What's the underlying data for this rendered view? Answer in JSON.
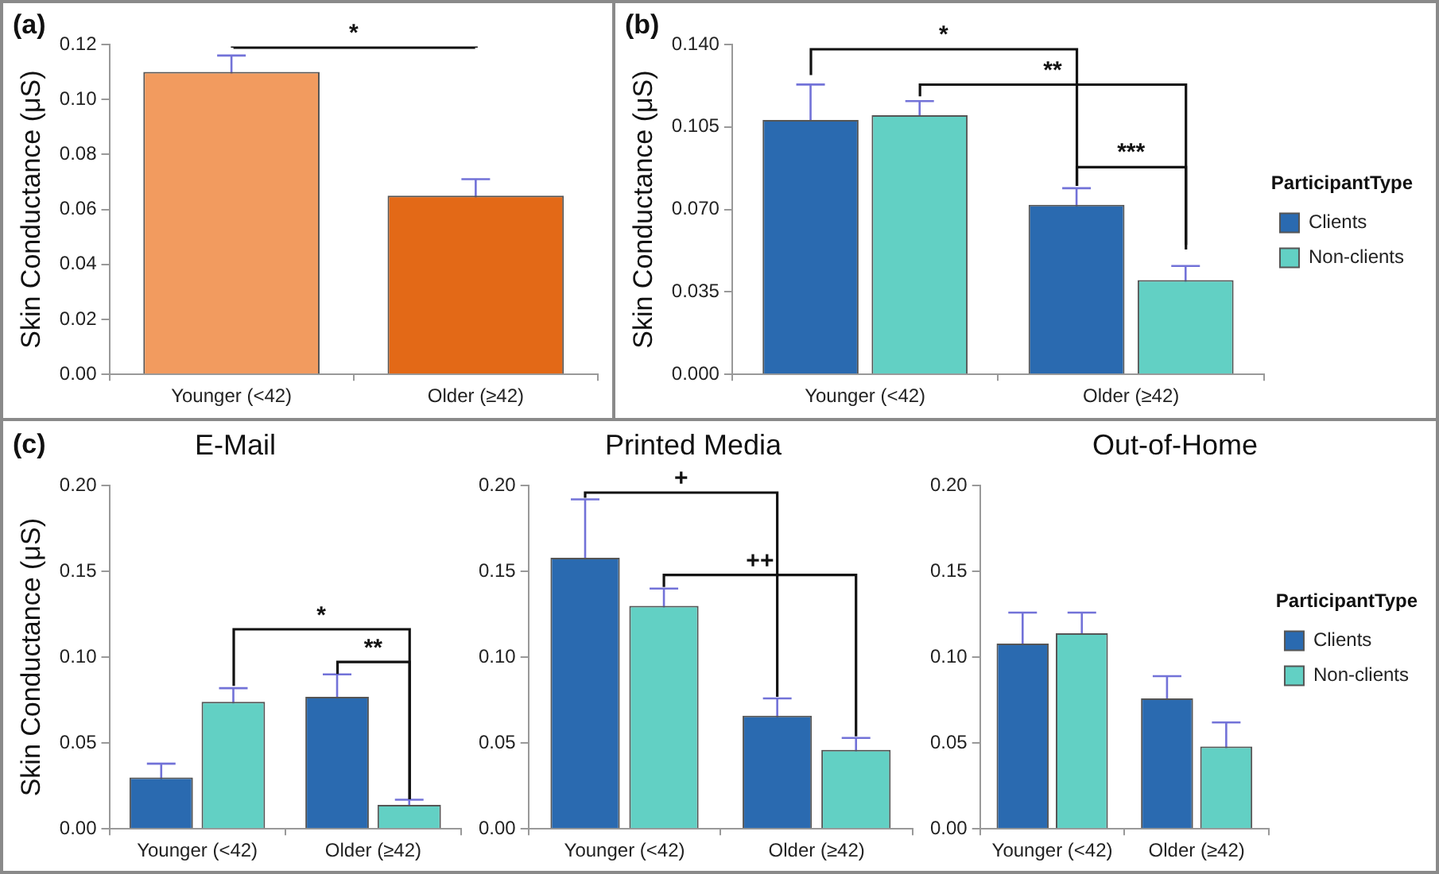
{
  "chart_data": [
    {
      "type": "bar",
      "ylabel": "Skin Conductance (μS)",
      "categories": [
        "Younger (<42)",
        "Older (≥42)"
      ],
      "values": [
        0.11,
        0.065
      ],
      "errors": [
        0.006,
        0.006
      ],
      "colors": [
        "#f29b5f",
        "#e36917"
      ],
      "ylim": [
        0,
        0.12
      ],
      "yticks": [
        {
          "value": 0,
          "label": "0.00"
        },
        {
          "value": 0.02,
          "label": "0.02"
        },
        {
          "value": 0.04,
          "label": "0.04"
        },
        {
          "value": 0.06,
          "label": "0.06"
        },
        {
          "value": 0.08,
          "label": "0.08"
        },
        {
          "value": 0.1,
          "label": "0.10"
        },
        {
          "value": 0.12,
          "label": "0.12"
        }
      ],
      "grid": false,
      "legend": false,
      "annotations": [
        "(a)",
        "*"
      ]
    },
    {
      "type": "bar",
      "ylabel": "Skin Conductance (μS)",
      "legend_title": "ParticipantType",
      "categories": [
        "Younger (<42)",
        "Older (≥42)"
      ],
      "series": [
        {
          "name": "Clients",
          "color": "#2a6ab0",
          "values": [
            0.108,
            0.072
          ],
          "errors": [
            0.015,
            0.007
          ]
        },
        {
          "name": "Non-clients",
          "color": "#62d0c4",
          "values": [
            0.11,
            0.04
          ],
          "errors": [
            0.006,
            0.006
          ]
        }
      ],
      "ylim": [
        0,
        0.14
      ],
      "yticks": [
        {
          "value": 0,
          "label": "0.000"
        },
        {
          "value": 0.035,
          "label": "0.035"
        },
        {
          "value": 0.07,
          "label": "0.070"
        },
        {
          "value": 0.105,
          "label": "0.105"
        },
        {
          "value": 0.14,
          "label": "0.140"
        }
      ],
      "grid": false,
      "legend": "right",
      "annotations": [
        "(b)",
        "*",
        "**",
        "***"
      ]
    },
    {
      "type": "bar",
      "title": "E-Mail",
      "ylabel": "Skin Conductance (μS)",
      "categories": [
        "Younger (<42)",
        "Older (≥42)"
      ],
      "series": [
        {
          "color": "#2a6ab0",
          "values": [
            0.03,
            0.077
          ],
          "errors": [
            0.008,
            0.013
          ]
        },
        {
          "color": "#62d0c4",
          "values": [
            0.074,
            0.014
          ],
          "errors": [
            0.008,
            0.003
          ]
        }
      ],
      "ylim": [
        0,
        0.2
      ],
      "yticks": [
        {
          "value": 0,
          "label": "0.00"
        },
        {
          "value": 0.05,
          "label": "0.05"
        },
        {
          "value": 0.1,
          "label": "0.10"
        },
        {
          "value": 0.15,
          "label": "0.15"
        },
        {
          "value": 0.2,
          "label": "0.20"
        }
      ],
      "grid": false,
      "legend": false,
      "annotations": [
        "(c)",
        "*",
        "**"
      ]
    },
    {
      "type": "bar",
      "title": "Printed Media",
      "categories": [
        "Younger (<42)",
        "Older (≥42)"
      ],
      "series": [
        {
          "color": "#2a6ab0",
          "values": [
            0.158,
            0.066
          ],
          "errors": [
            0.034,
            0.01
          ]
        },
        {
          "color": "#62d0c4",
          "values": [
            0.13,
            0.046
          ],
          "errors": [
            0.01,
            0.007
          ]
        }
      ],
      "ylim": [
        0,
        0.2
      ],
      "yticks": [
        {
          "value": 0,
          "label": "0.00"
        },
        {
          "value": 0.05,
          "label": "0.05"
        },
        {
          "value": 0.1,
          "label": "0.10"
        },
        {
          "value": 0.15,
          "label": "0.15"
        },
        {
          "value": 0.2,
          "label": "0.20"
        }
      ],
      "grid": false,
      "legend": false,
      "annotations": [
        "+",
        "++"
      ]
    },
    {
      "type": "bar",
      "title": "Out-of-Home",
      "legend_title": "ParticipantType",
      "categories": [
        "Younger (<42)",
        "Older (≥42)"
      ],
      "series": [
        {
          "name": "Clients",
          "color": "#2a6ab0",
          "values": [
            0.108,
            0.076
          ],
          "errors": [
            0.018,
            0.013
          ]
        },
        {
          "name": "Non-clients",
          "color": "#62d0c4",
          "values": [
            0.114,
            0.048
          ],
          "errors": [
            0.012,
            0.014
          ]
        }
      ],
      "ylim": [
        0,
        0.2
      ],
      "yticks": [
        {
          "value": 0,
          "label": "0.00"
        },
        {
          "value": 0.05,
          "label": "0.05"
        },
        {
          "value": 0.1,
          "label": "0.10"
        },
        {
          "value": 0.15,
          "label": "0.15"
        },
        {
          "value": 0.2,
          "label": "0.20"
        }
      ],
      "grid": false,
      "legend": "right"
    }
  ]
}
